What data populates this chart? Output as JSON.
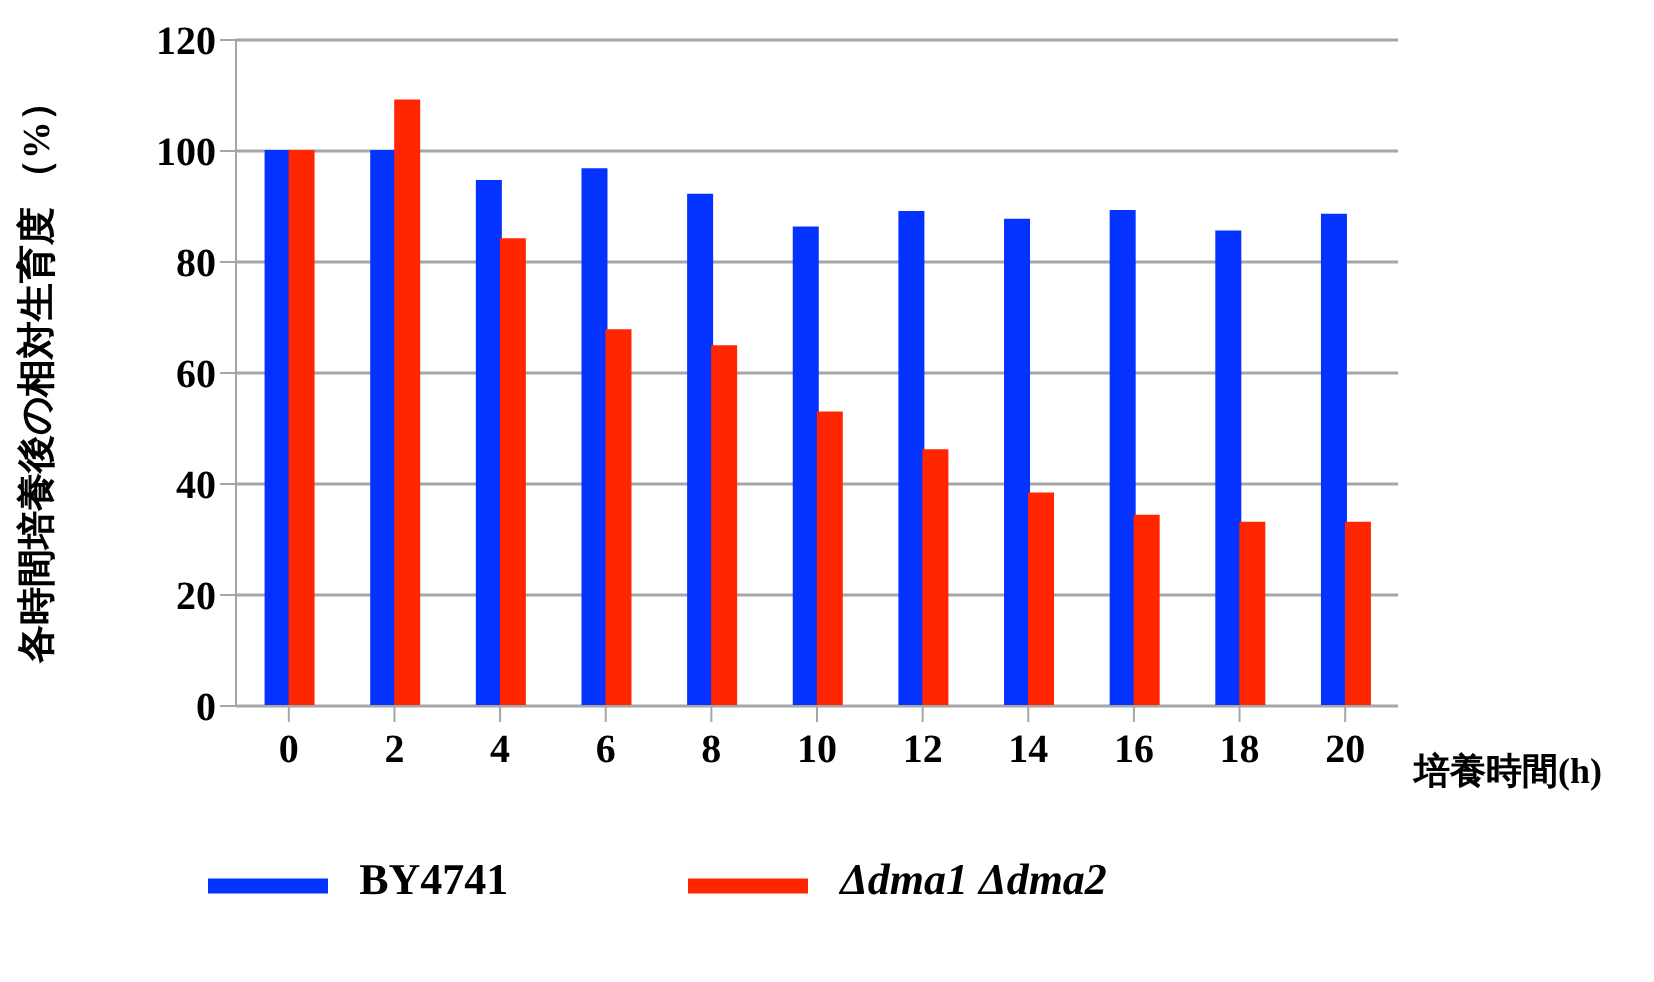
{
  "chart_data": {
    "type": "bar",
    "xlabel": "培養時間(h)",
    "ylabel": "各時間培養後の相対生育度 （%）",
    "categories": [
      "0",
      "2",
      "4",
      "6",
      "8",
      "10",
      "12",
      "14",
      "16",
      "18",
      "20"
    ],
    "series": [
      {
        "name": "BY4741",
        "color": "#0433ff",
        "values": [
          100,
          100,
          94.6,
          96.7,
          92.1,
          86.2,
          89,
          87.6,
          89.2,
          85.5,
          88.5
        ]
      },
      {
        "name": "Δdma1 Δdma2",
        "color": "#ff2600",
        "values": [
          100,
          109.1,
          84.1,
          67.7,
          64.8,
          52.9,
          46.1,
          38.3,
          34.3,
          33,
          33
        ]
      }
    ],
    "ylim": [
      0,
      120
    ],
    "yticks": [
      0,
      20,
      40,
      60,
      80,
      100,
      120
    ],
    "grid": "y",
    "legend": "bottom"
  }
}
